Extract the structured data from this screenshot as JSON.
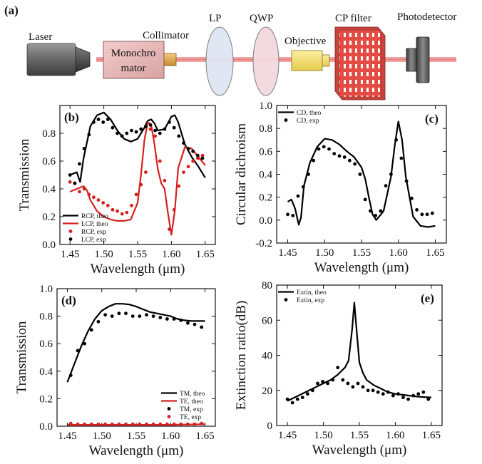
{
  "setup": {
    "panel_label": "(a)",
    "components": {
      "laser": "Laser",
      "monochromator_line1": "Monochro",
      "monochromator_line2": "mator",
      "collimator": "Collimator",
      "lp": "LP",
      "qwp": "QWP",
      "objective": "Objective",
      "cp_filter": "CP filter",
      "photodetector": "Photodetector"
    },
    "colors": {
      "beam": "#f2a3a3",
      "monochromator": "#e8b4b4",
      "filter": "#e9584f",
      "lens_lp": "#dde3f0",
      "lens_qwp": "#f0d6dc",
      "objective": "#f3e27a"
    }
  },
  "chart_data": [
    {
      "panel": "(b)",
      "type": "line",
      "xlabel": "Wavelength (μm)",
      "ylabel": "Transmission",
      "xlim": [
        1.435,
        1.665
      ],
      "ylim": [
        0.0,
        1.0
      ],
      "xticks": [
        "1.45",
        "1.50",
        "1.55",
        "1.60",
        "1.65"
      ],
      "yticks": [
        "0.0",
        "0.2",
        "0.4",
        "0.6",
        "0.8"
      ],
      "legend_position": "bottom-left",
      "series": [
        {
          "name": "RCP, theo",
          "style": "line",
          "color": "#000000",
          "x": [
            1.45,
            1.46,
            1.465,
            1.47,
            1.48,
            1.49,
            1.5,
            1.51,
            1.52,
            1.53,
            1.54,
            1.55,
            1.56,
            1.565,
            1.57,
            1.575,
            1.58,
            1.59,
            1.6,
            1.605,
            1.61,
            1.62,
            1.63,
            1.64,
            1.65
          ],
          "y": [
            0.5,
            0.52,
            0.45,
            0.62,
            0.85,
            0.93,
            0.95,
            0.9,
            0.82,
            0.76,
            0.74,
            0.76,
            0.84,
            0.89,
            0.9,
            0.87,
            0.82,
            0.83,
            0.92,
            0.93,
            0.88,
            0.72,
            0.63,
            0.56,
            0.48
          ]
        },
        {
          "name": "LCP, theo",
          "style": "line",
          "color": "#d62020",
          "x": [
            1.45,
            1.46,
            1.47,
            1.475,
            1.48,
            1.49,
            1.5,
            1.51,
            1.52,
            1.53,
            1.54,
            1.55,
            1.555,
            1.56,
            1.565,
            1.57,
            1.575,
            1.58,
            1.585,
            1.59,
            1.595,
            1.6,
            1.605,
            1.61,
            1.62,
            1.63,
            1.64,
            1.65
          ],
          "y": [
            0.38,
            0.4,
            0.42,
            0.39,
            0.32,
            0.24,
            0.2,
            0.18,
            0.17,
            0.17,
            0.18,
            0.3,
            0.5,
            0.75,
            0.88,
            0.86,
            0.72,
            0.54,
            0.44,
            0.4,
            0.22,
            0.07,
            0.24,
            0.55,
            0.7,
            0.69,
            0.63,
            0.57
          ]
        },
        {
          "name": "RCP, exp",
          "style": "dots",
          "color": "#d62020",
          "x": [
            1.45,
            1.457,
            1.464,
            1.471,
            1.478,
            1.485,
            1.492,
            1.499,
            1.506,
            1.513,
            1.52,
            1.527,
            1.534,
            1.541,
            1.548,
            1.555,
            1.562,
            1.569,
            1.576,
            1.583,
            1.59,
            1.597,
            1.604,
            1.611,
            1.618,
            1.625,
            1.632,
            1.639,
            1.646
          ],
          "y": [
            0.45,
            0.44,
            0.38,
            0.4,
            0.36,
            0.34,
            0.32,
            0.3,
            0.28,
            0.25,
            0.24,
            0.22,
            0.23,
            0.28,
            0.36,
            0.43,
            0.52,
            0.83,
            0.78,
            0.6,
            0.46,
            0.11,
            0.25,
            0.42,
            0.52,
            0.56,
            0.6,
            0.62,
            0.64
          ]
        },
        {
          "name": "LCP, exp",
          "style": "dots",
          "color": "#000000",
          "x": [
            1.45,
            1.457,
            1.464,
            1.471,
            1.478,
            1.485,
            1.492,
            1.499,
            1.506,
            1.513,
            1.52,
            1.527,
            1.534,
            1.541,
            1.548,
            1.555,
            1.562,
            1.569,
            1.576,
            1.583,
            1.59,
            1.597,
            1.604,
            1.611,
            1.618,
            1.625,
            1.632,
            1.639,
            1.646
          ],
          "y": [
            0.5,
            0.44,
            0.58,
            0.69,
            0.79,
            0.88,
            0.9,
            0.88,
            0.9,
            0.84,
            0.8,
            0.78,
            0.8,
            0.82,
            0.81,
            0.83,
            0.85,
            0.86,
            0.82,
            0.8,
            0.83,
            0.88,
            0.84,
            0.78,
            0.73,
            0.69,
            0.67,
            0.64,
            0.62
          ]
        }
      ]
    },
    {
      "panel": "(c)",
      "type": "line",
      "xlabel": "Wavelength (μm)",
      "ylabel": "Circular dichroism",
      "xlim": [
        1.435,
        1.665
      ],
      "ylim": [
        -0.2,
        1.0
      ],
      "xticks": [
        "1.45",
        "1.50",
        "1.55",
        "1.60",
        "1.65"
      ],
      "yticks": [
        "-0.2",
        "0.0",
        "0.2",
        "0.4",
        "0.6",
        "0.8",
        "1.0"
      ],
      "legend_position": "top-left",
      "series": [
        {
          "name": "CD, theo",
          "style": "line",
          "color": "#000000",
          "x": [
            1.45,
            1.455,
            1.46,
            1.465,
            1.468,
            1.472,
            1.48,
            1.49,
            1.5,
            1.51,
            1.52,
            1.53,
            1.54,
            1.55,
            1.555,
            1.56,
            1.565,
            1.57,
            1.58,
            1.59,
            1.595,
            1.6,
            1.605,
            1.61,
            1.62,
            1.63,
            1.64,
            1.65
          ],
          "y": [
            0.16,
            0.18,
            0.1,
            -0.04,
            0.02,
            0.3,
            0.5,
            0.64,
            0.71,
            0.7,
            0.66,
            0.6,
            0.55,
            0.46,
            0.36,
            0.2,
            0.05,
            0.0,
            0.08,
            0.38,
            0.65,
            0.86,
            0.7,
            0.38,
            0.03,
            -0.05,
            -0.06,
            -0.05
          ]
        },
        {
          "name": "CD, exp",
          "style": "dots",
          "color": "#000000",
          "x": [
            1.45,
            1.457,
            1.464,
            1.471,
            1.478,
            1.485,
            1.492,
            1.499,
            1.506,
            1.513,
            1.52,
            1.527,
            1.534,
            1.541,
            1.548,
            1.555,
            1.562,
            1.569,
            1.576,
            1.583,
            1.59,
            1.597,
            1.604,
            1.611,
            1.618,
            1.625,
            1.632,
            1.639,
            1.646
          ],
          "y": [
            0.05,
            0.04,
            0.21,
            0.29,
            0.4,
            0.52,
            0.62,
            0.64,
            0.62,
            0.58,
            0.56,
            0.55,
            0.52,
            0.49,
            0.4,
            0.18,
            0.08,
            0.04,
            0.08,
            0.3,
            0.4,
            0.7,
            0.54,
            0.34,
            0.19,
            0.09,
            0.05,
            0.05,
            0.06
          ]
        }
      ]
    },
    {
      "panel": "(d)",
      "type": "line",
      "xlabel": "Wavelength (μm)",
      "ylabel": "Transmission",
      "xlim": [
        1.435,
        1.665
      ],
      "ylim": [
        0.0,
        1.0
      ],
      "xticks": [
        "1.45",
        "1.50",
        "1.55",
        "1.60",
        "1.65"
      ],
      "yticks": [
        "0.0",
        "0.2",
        "0.4",
        "0.6",
        "0.8",
        "1.0"
      ],
      "legend_position": "bottom-right",
      "series": [
        {
          "name": "TM, theo",
          "style": "line",
          "color": "#000000",
          "x": [
            1.45,
            1.46,
            1.47,
            1.48,
            1.49,
            1.5,
            1.51,
            1.52,
            1.53,
            1.54,
            1.55,
            1.56,
            1.57,
            1.58,
            1.59,
            1.6,
            1.61,
            1.62,
            1.63,
            1.64,
            1.65
          ],
          "y": [
            0.32,
            0.45,
            0.58,
            0.69,
            0.78,
            0.84,
            0.87,
            0.89,
            0.89,
            0.885,
            0.87,
            0.85,
            0.83,
            0.82,
            0.81,
            0.8,
            0.78,
            0.77,
            0.765,
            0.765,
            0.765
          ]
        },
        {
          "name": "TE, theo",
          "style": "line",
          "color": "#d62020",
          "x": [
            1.45,
            1.5,
            1.55,
            1.6,
            1.65
          ],
          "y": [
            0.01,
            0.01,
            0.01,
            0.01,
            0.015
          ]
        },
        {
          "name": "TM, exp",
          "style": "dots",
          "color": "#000000",
          "x": [
            1.455,
            1.465,
            1.475,
            1.485,
            1.495,
            1.505,
            1.515,
            1.525,
            1.535,
            1.545,
            1.555,
            1.565,
            1.575,
            1.585,
            1.595,
            1.605,
            1.615,
            1.625,
            1.635,
            1.645
          ],
          "y": [
            0.37,
            0.55,
            0.6,
            0.7,
            0.76,
            0.81,
            0.8,
            0.82,
            0.82,
            0.8,
            0.8,
            0.81,
            0.8,
            0.79,
            0.78,
            0.78,
            0.77,
            0.75,
            0.74,
            0.72
          ]
        },
        {
          "name": "TE, exp",
          "style": "dots",
          "color": "#d62020",
          "x": [
            1.455,
            1.465,
            1.475,
            1.485,
            1.495,
            1.505,
            1.515,
            1.525,
            1.535,
            1.545,
            1.555,
            1.565,
            1.575,
            1.585,
            1.595,
            1.605,
            1.615,
            1.625,
            1.635,
            1.645
          ],
          "y": [
            0.02,
            0.015,
            0.015,
            0.015,
            0.015,
            0.015,
            0.015,
            0.015,
            0.015,
            0.015,
            0.015,
            0.015,
            0.015,
            0.015,
            0.015,
            0.015,
            0.015,
            0.015,
            0.015,
            0.02
          ]
        }
      ]
    },
    {
      "panel": "(e)",
      "type": "line",
      "xlabel": "Wavelength (μm)",
      "ylabel": "Extinction ratio(dB)",
      "xlim": [
        1.435,
        1.665
      ],
      "ylim": [
        0,
        80
      ],
      "xticks": [
        "1.45",
        "1.50",
        "1.55",
        "1.60",
        "1.65"
      ],
      "yticks": [
        "0",
        "20",
        "40",
        "60",
        "80"
      ],
      "legend_position": "top-left",
      "series": [
        {
          "name": "Extin, theo",
          "style": "line",
          "color": "#000000",
          "x": [
            1.45,
            1.46,
            1.47,
            1.48,
            1.49,
            1.5,
            1.51,
            1.52,
            1.53,
            1.535,
            1.54,
            1.543,
            1.546,
            1.55,
            1.555,
            1.56,
            1.57,
            1.58,
            1.59,
            1.6,
            1.61,
            1.62,
            1.63,
            1.64,
            1.65
          ],
          "y": [
            14,
            16,
            18,
            20,
            22,
            24,
            26,
            29,
            33,
            37,
            55,
            70,
            55,
            36,
            30,
            26,
            23,
            21,
            19,
            18,
            17.5,
            17,
            16.5,
            16.2,
            16
          ]
        },
        {
          "name": "Extin, exp",
          "style": "dots",
          "color": "#000000",
          "x": [
            1.45,
            1.457,
            1.464,
            1.471,
            1.478,
            1.485,
            1.492,
            1.499,
            1.506,
            1.513,
            1.52,
            1.527,
            1.534,
            1.541,
            1.548,
            1.555,
            1.562,
            1.569,
            1.576,
            1.583,
            1.59,
            1.597,
            1.604,
            1.611,
            1.618,
            1.625,
            1.632,
            1.639,
            1.646
          ],
          "y": [
            15,
            13,
            15,
            16,
            18,
            20,
            24,
            25,
            24,
            26,
            33,
            26,
            24,
            22,
            24,
            22,
            20,
            20,
            19,
            18,
            19,
            17,
            18,
            16,
            15,
            17,
            18,
            19,
            15
          ]
        }
      ]
    }
  ]
}
